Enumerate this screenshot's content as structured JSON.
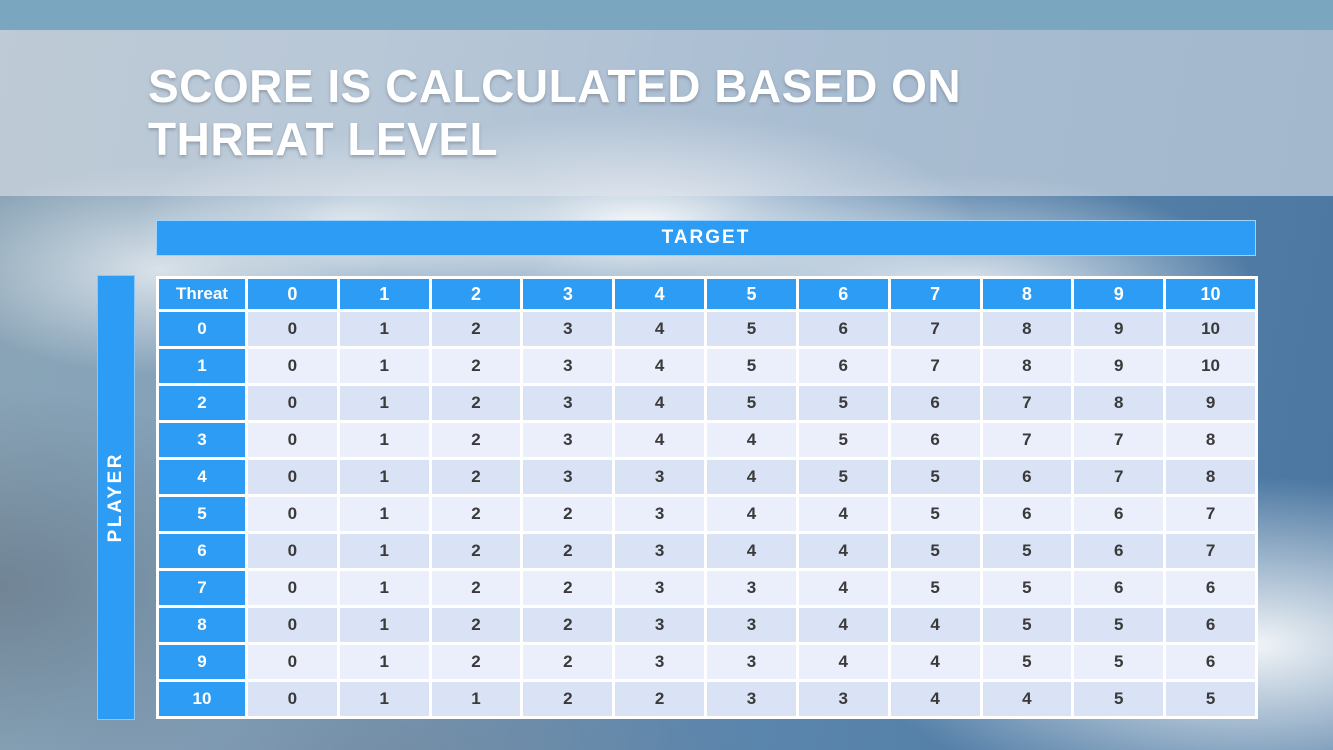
{
  "slide": {
    "title_line1": "SCORE IS CALCULATED BASED ON",
    "title_line2": "THREAT LEVEL"
  },
  "table": {
    "target_label": "TARGET",
    "player_label": "PLAYER",
    "corner_header": "Threat",
    "column_headers": [
      "0",
      "1",
      "2",
      "3",
      "4",
      "5",
      "6",
      "7",
      "8",
      "9",
      "10"
    ],
    "rows": [
      {
        "threat": "0",
        "values": [
          0,
          1,
          2,
          3,
          4,
          5,
          6,
          7,
          8,
          9,
          10
        ]
      },
      {
        "threat": "1",
        "values": [
          0,
          1,
          2,
          3,
          4,
          5,
          6,
          7,
          8,
          9,
          10
        ]
      },
      {
        "threat": "2",
        "values": [
          0,
          1,
          2,
          3,
          4,
          5,
          5,
          6,
          7,
          8,
          9
        ]
      },
      {
        "threat": "3",
        "values": [
          0,
          1,
          2,
          3,
          4,
          4,
          5,
          6,
          7,
          7,
          8
        ]
      },
      {
        "threat": "4",
        "values": [
          0,
          1,
          2,
          3,
          3,
          4,
          5,
          5,
          6,
          7,
          8
        ]
      },
      {
        "threat": "5",
        "values": [
          0,
          1,
          2,
          2,
          3,
          4,
          4,
          5,
          6,
          6,
          7
        ]
      },
      {
        "threat": "6",
        "values": [
          0,
          1,
          2,
          2,
          3,
          4,
          4,
          5,
          5,
          6,
          7
        ]
      },
      {
        "threat": "7",
        "values": [
          0,
          1,
          2,
          2,
          3,
          3,
          4,
          5,
          5,
          6,
          6
        ]
      },
      {
        "threat": "8",
        "values": [
          0,
          1,
          2,
          2,
          3,
          3,
          4,
          4,
          5,
          5,
          6
        ]
      },
      {
        "threat": "9",
        "values": [
          0,
          1,
          2,
          2,
          3,
          3,
          4,
          4,
          5,
          5,
          6
        ]
      },
      {
        "threat": "10",
        "values": [
          0,
          1,
          1,
          2,
          2,
          3,
          3,
          4,
          4,
          5,
          5
        ]
      }
    ]
  },
  "colors": {
    "accent_blue": "#2d9cf4",
    "top_bar": "#7ba6c0",
    "row_even": "#d9e3f5",
    "row_odd": "#eaeffb",
    "grid_white": "#ffffff",
    "cell_text": "#3a3a3a"
  }
}
